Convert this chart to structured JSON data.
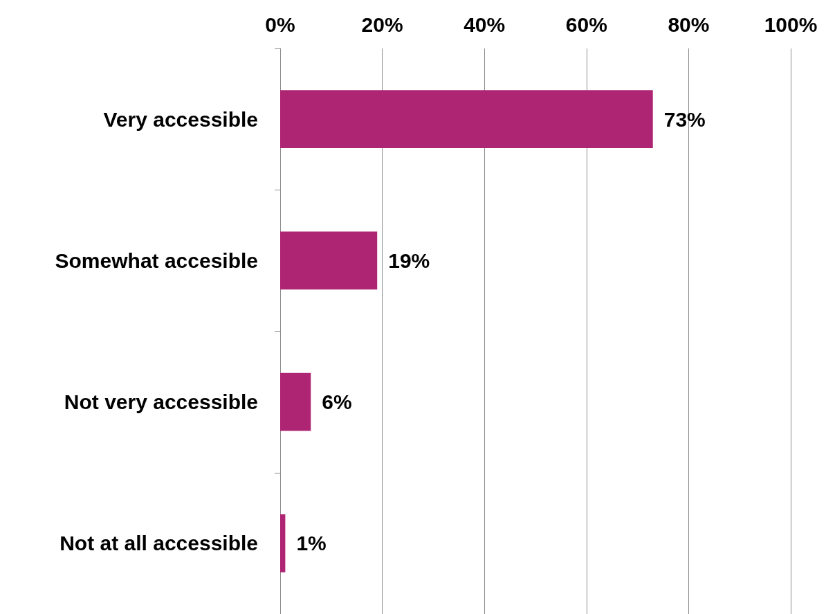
{
  "chart_data": {
    "type": "bar",
    "orientation": "horizontal",
    "categories": [
      "Very accessible",
      "Somewhat accesible",
      "Not very accessible",
      "Not at all accessible"
    ],
    "values": [
      73,
      19,
      6,
      1
    ],
    "value_labels": [
      "73%",
      "19%",
      "6%",
      "1%"
    ],
    "color": "#ae2573",
    "xlim": [
      0,
      100
    ],
    "xticks": [
      {
        "value": 0,
        "label": "0%"
      },
      {
        "value": 20,
        "label": "20%"
      },
      {
        "value": 40,
        "label": "40%"
      },
      {
        "value": 60,
        "label": "60%"
      },
      {
        "value": 80,
        "label": "80%"
      },
      {
        "value": 100,
        "label": "100%"
      }
    ],
    "grid": "x"
  }
}
